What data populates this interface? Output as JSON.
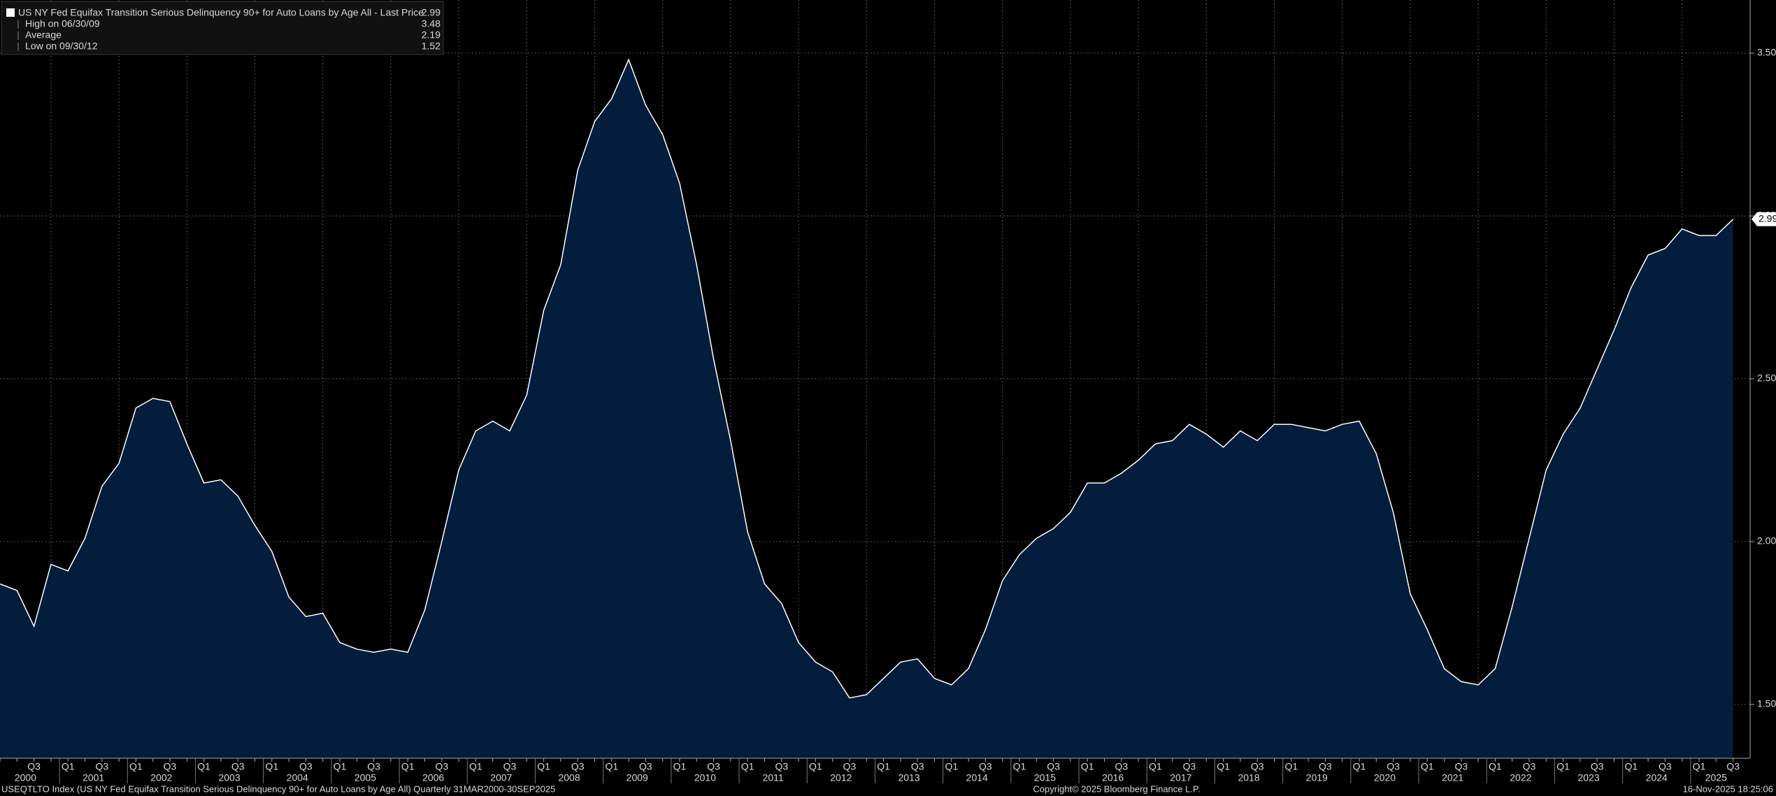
{
  "chart_data": {
    "type": "area",
    "legend_title": "US NY Fed Equifax Transition Serious Delinquency 90+ for Auto Loans by Age All - Last Price",
    "stats": [
      {
        "label": "High on 06/30/09",
        "value": 3.48
      },
      {
        "label": "Average",
        "value": 2.19
      },
      {
        "label": "Low on 09/30/12",
        "value": 1.52
      }
    ],
    "categories": [
      null,
      null,
      "Q3",
      null,
      "Q1",
      null,
      "Q3",
      null,
      "Q1",
      null,
      "Q3",
      null,
      "Q1",
      null,
      "Q3",
      null,
      "Q1",
      null,
      "Q3",
      null,
      "Q1",
      null,
      "Q3",
      null,
      "Q1",
      null,
      "Q3",
      null,
      "Q1",
      null,
      "Q3",
      null,
      "Q1",
      null,
      "Q3",
      null,
      "Q1",
      null,
      "Q3",
      null,
      "Q1",
      null,
      "Q3",
      null,
      "Q1",
      null,
      "Q3",
      null,
      "Q1",
      null,
      "Q3",
      null,
      "Q1",
      null,
      "Q3",
      null,
      "Q1",
      null,
      "Q3",
      null,
      "Q1",
      null,
      "Q3",
      null,
      "Q1",
      null,
      "Q3",
      null,
      "Q1",
      null,
      "Q3",
      null,
      "Q1",
      null,
      "Q3",
      null,
      "Q1",
      null,
      "Q3",
      null,
      "Q1",
      null,
      "Q3",
      null,
      "Q1",
      null,
      "Q3",
      null,
      "Q1",
      null,
      "Q3",
      null,
      "Q1",
      null,
      "Q3",
      null,
      "Q1",
      null,
      "Q3",
      null,
      "Q1",
      null,
      "Q3"
    ],
    "years": [
      "2000",
      "2001",
      "2002",
      "2003",
      "2004",
      "2005",
      "2006",
      "2007",
      "2008",
      "2009",
      "2010",
      "2011",
      "2012",
      "2013",
      "2014",
      "2015",
      "2016",
      "2017",
      "2018",
      "2019",
      "2020",
      "2021",
      "2022",
      "2023",
      "2024",
      "2025"
    ],
    "series": [
      {
        "name": "US NY Fed Equifax Transition Serious Delinquency 90+ for Auto Loans by Age All",
        "color": "#ffffff",
        "fill": "#041d3d",
        "values": [
          1.87,
          1.85,
          1.74,
          1.93,
          1.91,
          2.01,
          2.17,
          2.24,
          2.41,
          2.44,
          2.43,
          2.3,
          2.18,
          2.19,
          2.14,
          2.05,
          1.97,
          1.83,
          1.77,
          1.78,
          1.69,
          1.67,
          1.66,
          1.67,
          1.66,
          1.79,
          2.0,
          2.22,
          2.34,
          2.37,
          2.34,
          2.45,
          2.71,
          2.85,
          3.14,
          3.29,
          3.36,
          3.48,
          3.34,
          3.25,
          3.1,
          2.85,
          2.56,
          2.31,
          2.03,
          1.87,
          1.81,
          1.69,
          1.63,
          1.6,
          1.52,
          1.53,
          1.58,
          1.63,
          1.64,
          1.58,
          1.56,
          1.61,
          1.73,
          1.88,
          1.96,
          2.01,
          2.04,
          2.09,
          2.18,
          2.18,
          2.21,
          2.25,
          2.3,
          2.31,
          2.36,
          2.33,
          2.29,
          2.34,
          2.31,
          2.36,
          2.36,
          2.35,
          2.34,
          2.36,
          2.37,
          2.27,
          2.09,
          1.84,
          1.73,
          1.61,
          1.57,
          1.56,
          1.61,
          1.8,
          2.01,
          2.22,
          2.33,
          2.41,
          2.53,
          2.65,
          2.78,
          2.88,
          2.9,
          2.96,
          2.94,
          2.94,
          2.99
        ]
      }
    ],
    "ylim": [
      1.3,
      3.6
    ],
    "yticks": [
      {
        "value": 1.5,
        "label": "1.50"
      },
      {
        "value": 2,
        "label": "2.00"
      },
      {
        "value": 2.5,
        "label": "2.50"
      },
      {
        "value": 3,
        "label": "3.00"
      },
      {
        "value": 3.5,
        "label": "3.50"
      }
    ],
    "grid": true,
    "footer_left": "USEQTLTO Index (US NY Fed Equifax Transition Serious Delinquency 90+ for Auto Loans by Age All) Quarterly 31MAR2000-30SEP2025",
    "footer_center": "Copyright© 2025 Bloomberg Finance L.P.",
    "footer_right": "16-Nov-2025 18:25:06"
  }
}
